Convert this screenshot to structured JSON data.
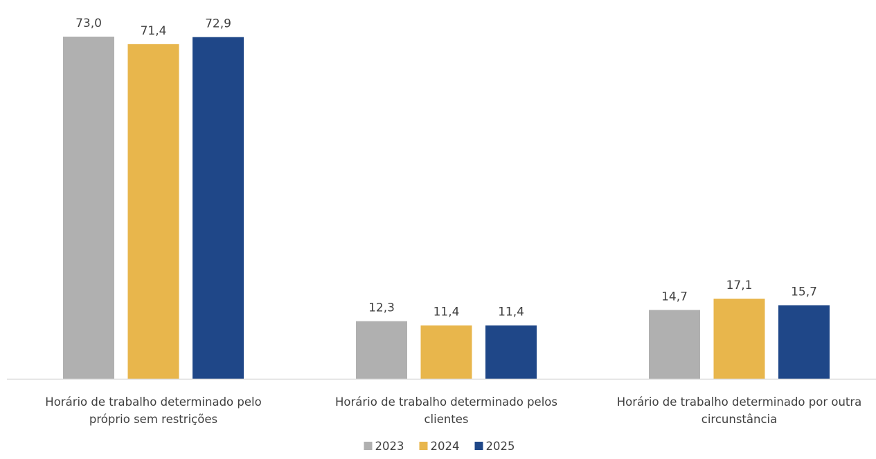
{
  "chart_data": {
    "type": "bar",
    "categories": [
      [
        "Horário de trabalho determinado pelo",
        "próprio sem restrições"
      ],
      [
        "Horário de trabalho determinado pelos",
        "clientes"
      ],
      [
        "Horário de trabalho determinado por outra",
        "circunstância"
      ]
    ],
    "series": [
      {
        "name": "2023",
        "color": "#b0b0b0",
        "values": [
          73.0,
          12.3,
          14.7
        ],
        "labels": [
          "73,0",
          "12,3",
          "14,7"
        ]
      },
      {
        "name": "2024",
        "color": "#e8b64c",
        "values": [
          71.4,
          11.4,
          17.1
        ],
        "labels": [
          "71,4",
          "11,4",
          "17,1"
        ]
      },
      {
        "name": "2025",
        "color": "#1f4788",
        "values": [
          72.9,
          11.4,
          15.7
        ],
        "labels": [
          "72,9",
          "11,4",
          "15,7"
        ]
      }
    ],
    "ylim": [
      0,
      73.0
    ],
    "grid": false,
    "legend": "bottom-center"
  }
}
